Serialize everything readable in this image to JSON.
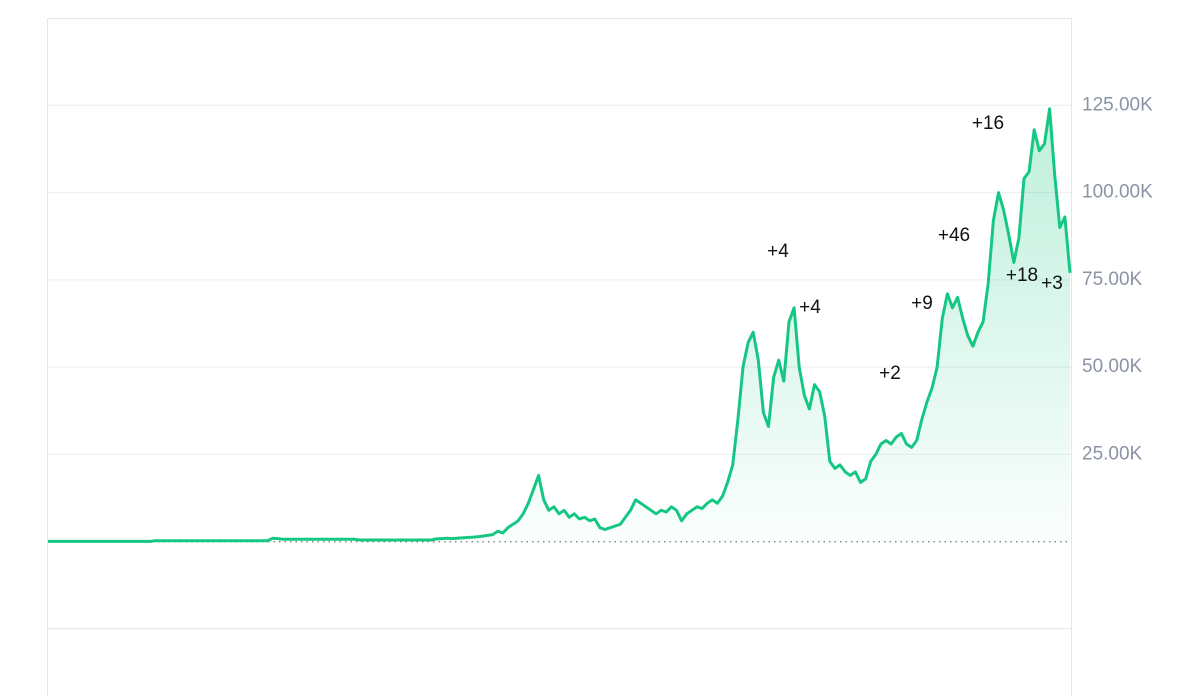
{
  "chart_data": {
    "type": "line",
    "color": "#16c784",
    "area": true,
    "grid": true,
    "ylim": [
      -25000,
      150000
    ],
    "yticks": [
      {
        "value": 25000,
        "label": "25.00K"
      },
      {
        "value": 50000,
        "label": "50.00K"
      },
      {
        "value": 75000,
        "label": "75.00K"
      },
      {
        "value": 100000,
        "label": "100.00K"
      },
      {
        "value": 125000,
        "label": "125.00K"
      }
    ],
    "annotations": [
      "+4",
      "+4",
      "+2",
      "+9",
      "+46",
      "+16",
      "+18",
      "+3"
    ],
    "values": [
      100,
      100,
      100,
      100,
      100,
      100,
      100,
      100,
      100,
      100,
      100,
      100,
      100,
      100,
      100,
      100,
      100,
      100,
      100,
      100,
      100,
      300,
      300,
      300,
      300,
      300,
      300,
      300,
      300,
      300,
      300,
      300,
      300,
      300,
      300,
      300,
      300,
      300,
      300,
      300,
      300,
      300,
      300,
      300,
      1000,
      900,
      700,
      700,
      700,
      700,
      700,
      700,
      700,
      700,
      700,
      700,
      700,
      700,
      700,
      700,
      700,
      500,
      500,
      500,
      500,
      500,
      500,
      500,
      500,
      500,
      500,
      500,
      500,
      500,
      500,
      500,
      800,
      900,
      1000,
      900,
      1000,
      1100,
      1200,
      1300,
      1400,
      1600,
      1800,
      2000,
      3000,
      2500,
      4000,
      5000,
      6000,
      8000,
      11000,
      15000,
      19000,
      12000,
      9000,
      10000,
      8000,
      9000,
      7000,
      8000,
      6500,
      7000,
      6000,
      6500,
      4000,
      3500,
      4000,
      4500,
      5000,
      7000,
      9000,
      12000,
      11000,
      10000,
      9000,
      8000,
      9000,
      8500,
      10000,
      9000,
      6000,
      8000,
      9000,
      10000,
      9500,
      11000,
      12000,
      11000,
      13000,
      17000,
      22000,
      35000,
      50000,
      57000,
      60000,
      52000,
      37000,
      33000,
      47000,
      52000,
      46000,
      63000,
      67000,
      50000,
      42000,
      38000,
      45000,
      43000,
      36000,
      23000,
      21000,
      22000,
      20000,
      19000,
      20000,
      17000,
      18000,
      23000,
      25000,
      28000,
      29000,
      28000,
      30000,
      31000,
      28000,
      27000,
      29000,
      35000,
      40000,
      44000,
      50000,
      64000,
      71000,
      67000,
      70000,
      64000,
      59000,
      56000,
      60000,
      63000,
      74000,
      92000,
      100000,
      95000,
      88000,
      80000,
      87000,
      104000,
      106000,
      118000,
      112000,
      114000,
      124000,
      105000,
      90000,
      93000,
      77000
    ]
  }
}
